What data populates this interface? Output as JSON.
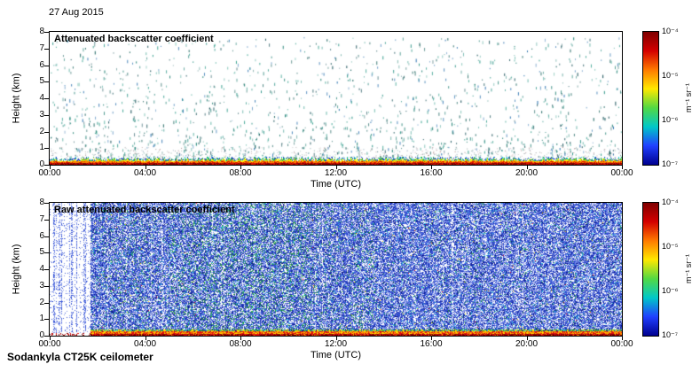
{
  "date_label": "27 Aug 2015",
  "footer_label": "Sodankyla CT25K ceilometer",
  "panels": [
    {
      "title": "Attenuated backscatter coefficient",
      "xlabel": "Time (UTC)",
      "ylabel": "Height (km)",
      "x_ticks": [
        "00:00",
        "04:00",
        "08:00",
        "12:00",
        "16:00",
        "20:00",
        "00:00"
      ],
      "y_ticks": [
        "8",
        "7",
        "6",
        "5",
        "4",
        "3",
        "2",
        "1",
        "0"
      ]
    },
    {
      "title": "Raw attenuated backscatter coefficient",
      "xlabel": "Time (UTC)",
      "ylabel": "Height (km)",
      "x_ticks": [
        "00:00",
        "04:00",
        "08:00",
        "12:00",
        "16:00",
        "20:00",
        "00:00"
      ],
      "y_ticks": [
        "8",
        "7",
        "6",
        "5",
        "4",
        "3",
        "2",
        "1",
        "0"
      ]
    }
  ],
  "colorbar": {
    "ticks": [
      "10⁻⁴",
      "10⁻⁵",
      "10⁻⁶",
      "10⁻⁷"
    ],
    "unit": "m⁻¹ sr⁻¹",
    "gradient": [
      "#7f0000",
      "#d40000",
      "#ff7a00",
      "#ffe800",
      "#52d943",
      "#00c8c8",
      "#2040ff",
      "#000090"
    ]
  },
  "chart_data": [
    {
      "type": "heatmap",
      "title": "Attenuated backscatter coefficient",
      "xlabel": "Time (UTC)",
      "ylabel": "Height (km)",
      "x_range_hours": [
        0,
        24
      ],
      "y_range_km": [
        0,
        8
      ],
      "x_tick_labels": [
        "00:00",
        "04:00",
        "08:00",
        "12:00",
        "16:00",
        "20:00",
        "00:00"
      ],
      "value_range": [
        "1e-7",
        "1e-4"
      ],
      "value_unit": "m⁻¹ sr⁻¹",
      "colormap": "jet",
      "summary": "Cloud-filtered backscatter: sparse short teal/green vertical speckles (cloud and aerosol returns) scattered between 0.5 and 7.5 km throughout the 24 h; strong multicoloured (red/orange/yellow/green/blue) boundary-layer echo below about 0.4 km for the whole day.",
      "render": {
        "seed": 42,
        "speckle_count": 1700,
        "speckle_colors": [
          "#1e7f73",
          "#2a9486",
          "#145f5a",
          "#35a08e",
          "#0e4a52",
          "#266fae"
        ],
        "dust_colors": [
          "#666666",
          "#3c6f6a",
          "#7a4444",
          "#335577"
        ],
        "band": {
          "dark_red": "#7f0000",
          "red": "#dd1500",
          "orange": "#ff8800",
          "yellow": "#ffee00",
          "green": "#2db34a",
          "cyan": "#1fc8d8",
          "blue": "#2244cc"
        }
      }
    },
    {
      "type": "heatmap",
      "title": "Raw attenuated backscatter coefficient",
      "xlabel": "Time (UTC)",
      "ylabel": "Height (km)",
      "x_range_hours": [
        0,
        24
      ],
      "y_range_km": [
        0,
        8
      ],
      "x_tick_labels": [
        "00:00",
        "04:00",
        "08:00",
        "12:00",
        "16:00",
        "20:00",
        "00:00"
      ],
      "value_range": [
        "1e-7",
        "1e-4"
      ],
      "value_unit": "m⁻¹ sr⁻¹",
      "colormap": "jet",
      "summary": "Unfiltered raw backscatter: dense blue instrument noise with green speckle clusters over the full 0-8 km range; quieter whitish zone with faint vertical stripes before about 01:40 UTC; strong red/orange/yellow surface echo below about 0.4 km.",
      "render": {
        "seed": 1337,
        "left_clear_cols": 46,
        "palette": {
          "white": "#ffffff",
          "light": "#7b8fe8",
          "mid": "#3352d4",
          "deep": "#1b2fb0",
          "dark": "#0c1780",
          "cyan": "#27c4dd",
          "green": "#2fae4a",
          "dgreen": "#1b8138",
          "yellow": "#ffe000",
          "orange": "#ff9000",
          "red": "#e01010",
          "darkred": "#7f0000"
        }
      }
    }
  ]
}
